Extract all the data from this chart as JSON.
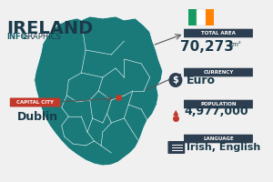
{
  "title": "IRELAND",
  "subtitle_info": "INFO",
  "subtitle_graphics": "GRAPHICS",
  "bg_color": "#f0f0f0",
  "map_color": "#1a7a7a",
  "map_border_color": "#ffffff",
  "teal_dark": "#1a5f6a",
  "dark_slate": "#2d3e50",
  "red_accent": "#c0392b",
  "title_color": "#1a3a4a",
  "total_area_label": "TOTAL AREA",
  "total_area_value": "70,273",
  "total_area_unit": "km²",
  "currency_label": "CURRENCY",
  "currency_value": "Euro",
  "population_label": "POPULATION",
  "population_value": "4,977,000",
  "language_label": "LANGUAGE",
  "language_value": "Irish, English",
  "capital_label": "CAPITAL CITY",
  "capital_value": "Dublin",
  "flag_green": "#169b62",
  "flag_white": "#ffffff",
  "flag_orange": "#ff8200"
}
